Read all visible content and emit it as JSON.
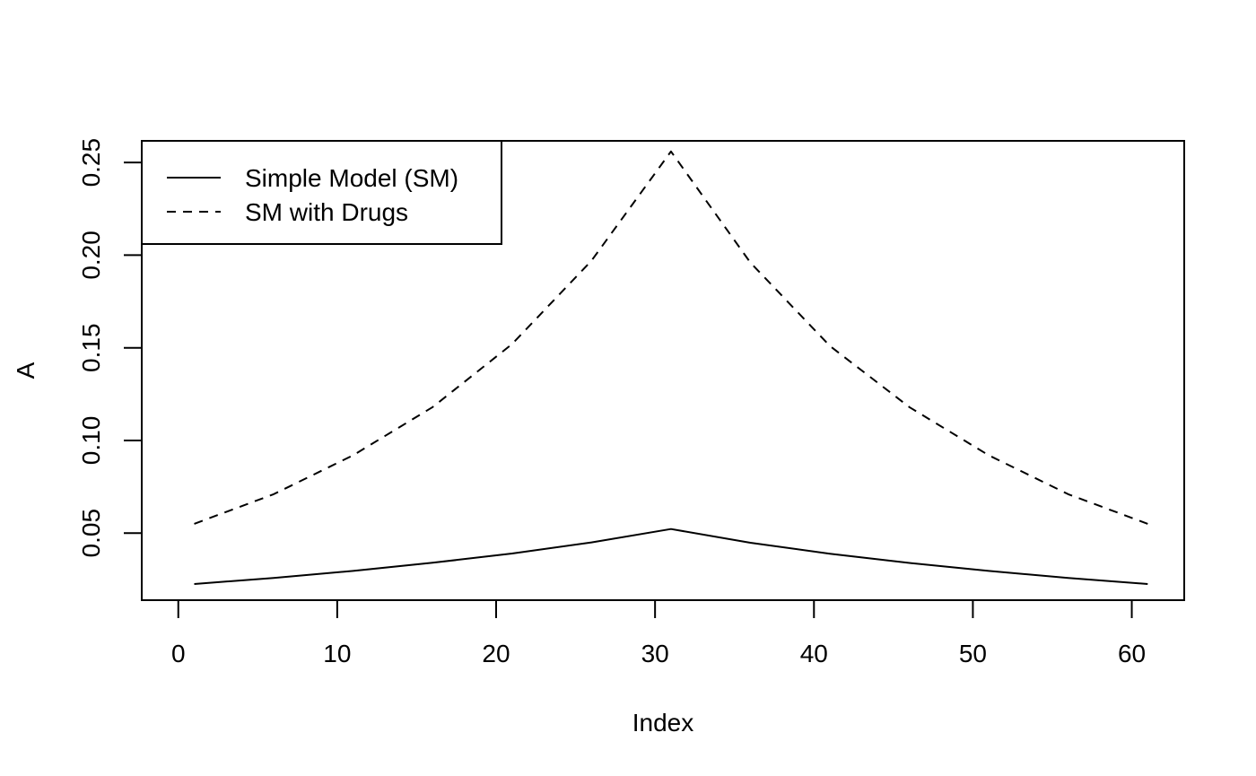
{
  "chart_data": {
    "type": "line",
    "title": "",
    "xlabel": "Index",
    "ylabel": "A",
    "xlim": [
      -2.3,
      63.3
    ],
    "ylim": [
      0.0138,
      0.2617
    ],
    "x_ticks": [
      0,
      10,
      20,
      30,
      40,
      50,
      60
    ],
    "y_ticks": [
      0.05,
      0.1,
      0.15,
      0.2,
      0.25
    ],
    "x_tick_labels": [
      "0",
      "10",
      "20",
      "30",
      "40",
      "50",
      "60"
    ],
    "y_tick_labels": [
      "0.05",
      "0.10",
      "0.15",
      "0.20",
      "0.25"
    ],
    "grid": false,
    "legend": {
      "position": "top-left"
    },
    "series": [
      {
        "name": "Simple Model (SM)",
        "line_style": "solid",
        "color": "#000000",
        "x": [
          1,
          6,
          11,
          16,
          21,
          26,
          31,
          36,
          41,
          46,
          51,
          56,
          61
        ],
        "y": [
          0.0225,
          0.0258,
          0.0296,
          0.034,
          0.039,
          0.045,
          0.0522,
          0.0448,
          0.0389,
          0.0339,
          0.0296,
          0.0258,
          0.0225
        ]
      },
      {
        "name": "SM with Drugs",
        "line_style": "dashed",
        "color": "#000000",
        "x": [
          1,
          6,
          11,
          16,
          21,
          26,
          31,
          36,
          41,
          46,
          51,
          56,
          61
        ],
        "y": [
          0.055,
          0.071,
          0.092,
          0.118,
          0.152,
          0.197,
          0.256,
          0.196,
          0.151,
          0.118,
          0.092,
          0.071,
          0.055
        ]
      }
    ]
  }
}
